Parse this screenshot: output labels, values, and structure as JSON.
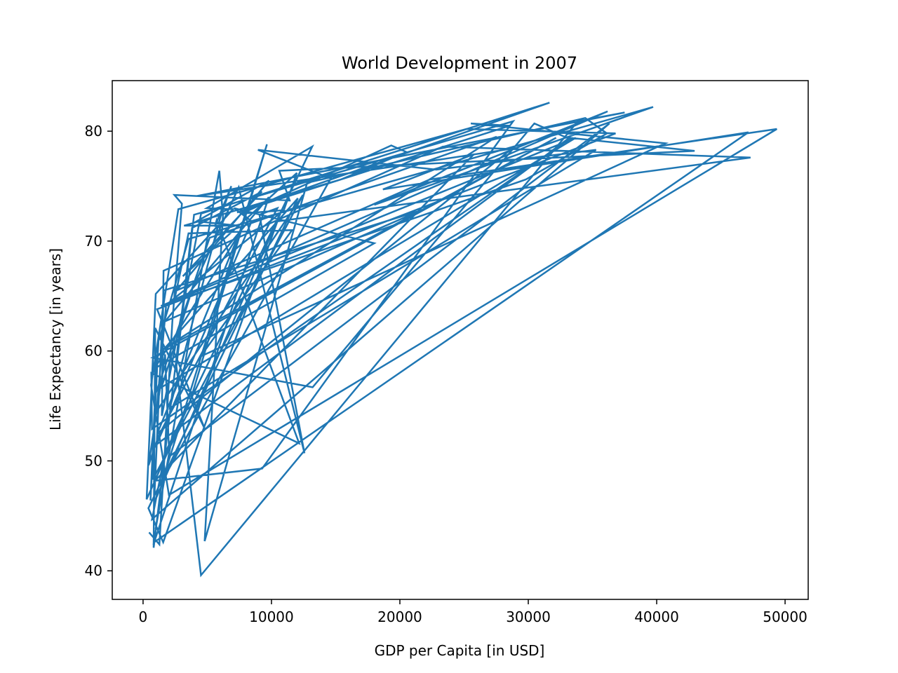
{
  "chart_data": {
    "type": "line",
    "title": "World Development in 2007",
    "xlabel": "GDP per Capita [in USD]",
    "ylabel": "Life Expectancy [in years]",
    "xlim": [
      -2400,
      51800
    ],
    "ylim": [
      37.4,
      84.6
    ],
    "xticks": [
      0,
      10000,
      20000,
      30000,
      40000,
      50000
    ],
    "yticks": [
      40,
      50,
      60,
      70,
      80
    ],
    "grid": false,
    "legend": false,
    "series_color": "#1f77b4",
    "series": [
      {
        "x": [
          975,
          5937,
          6223,
          4797,
          12779,
          34435,
          36126,
          29796,
          1391,
          33692,
          1441,
          3822,
          7446,
          12570,
          9065,
          10461,
          1217,
          430,
          1714,
          2042,
          36319,
          706,
          1704,
          13172,
          4959,
          7006,
          986,
          278,
          3633,
          9645,
          1545,
          14619,
          8948,
          22834,
          35278,
          2082,
          6025,
          6873,
          5581,
          5728,
          12154,
          641,
          690,
          33207,
          30470,
          13206,
          753,
          32170,
          1328,
          27538,
          5186,
          943,
          579,
          1202,
          3548,
          39725,
          18009,
          36181,
          2452,
          3541,
          11606,
          4471,
          40676,
          25523,
          28570,
          7321,
          31656,
          4519,
          1463,
          1593,
          23348,
          47307,
          10461,
          1569,
          415,
          12057,
          1044,
          759,
          12452,
          1043,
          1804,
          10957,
          11978,
          3096,
          9254,
          3820,
          824,
          944,
          4811,
          1091,
          36798,
          25185,
          2749,
          620,
          2014,
          49357,
          22316,
          2606,
          9809,
          4173,
          7409,
          3190,
          15390,
          20510,
          19329,
          7670,
          10808,
          863,
          1598,
          21655,
          1713,
          9787,
          862,
          47143,
          18678,
          25768,
          927,
          9270,
          28821,
          3970,
          2602,
          4513,
          33860,
          37506,
          4185,
          28718,
          1107,
          7458,
          882,
          18009,
          7093,
          8458,
          1056,
          33203,
          42952,
          10611,
          11416,
          2442,
          3026,
          2281,
          1271,
          470
        ],
        "y": [
          43.8,
          76.4,
          72.3,
          42.7,
          75.3,
          81.2,
          79.8,
          75.6,
          64.1,
          79.4,
          56.7,
          65.6,
          74.9,
          50.7,
          72.4,
          73.0,
          52.3,
          49.6,
          59.7,
          50.4,
          80.7,
          44.7,
          50.7,
          78.6,
          73.0,
          72.9,
          65.2,
          46.5,
          55.3,
          78.8,
          48.3,
          75.7,
          78.3,
          76.5,
          78.3,
          54.8,
          72.2,
          75.0,
          71.3,
          71.9,
          51.6,
          58.0,
          52.9,
          79.3,
          80.7,
          56.7,
          59.4,
          79.4,
          60.0,
          79.5,
          70.3,
          56.0,
          46.4,
          60.9,
          70.2,
          82.2,
          73.3,
          81.8,
          64.7,
          70.7,
          71.0,
          59.5,
          78.9,
          80.7,
          80.5,
          72.6,
          82.6,
          72.5,
          54.1,
          67.3,
          78.6,
          77.6,
          71.8,
          42.6,
          45.7,
          73.9,
          59.4,
          48.3,
          74.2,
          54.5,
          64.2,
          72.8,
          76.2,
          66.8,
          74.5,
          71.2,
          42.1,
          62.1,
          52.9,
          63.8,
          79.8,
          80.2,
          72.9,
          56.9,
          46.9,
          80.2,
          75.6,
          65.5,
          75.5,
          71.8,
          71.4,
          71.4,
          75.6,
          78.1,
          78.7,
          72.5,
          72.8,
          46.2,
          65.5,
          72.8,
          62.7,
          74.0,
          42.6,
          79.9,
          74.7,
          77.9,
          48.2,
          49.3,
          80.9,
          72.4,
          58.6,
          39.6,
          80.9,
          81.7,
          74.1,
          78.4,
          52.5,
          70.6,
          58.4,
          69.8,
          73.0,
          71.8,
          51.5,
          79.4,
          78.2,
          76.4,
          73.7,
          74.2,
          73.4,
          62.7,
          42.4,
          43.5
        ]
      }
    ]
  }
}
